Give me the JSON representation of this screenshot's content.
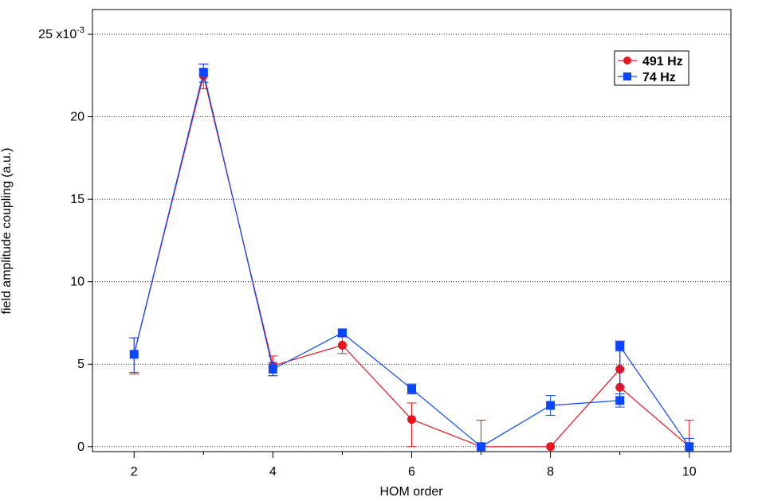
{
  "chart_data": {
    "type": "line",
    "title": "",
    "xlabel": "HOM order",
    "ylabel": "field amplitude coupling (a.u.)",
    "y_multiplier_label": "x10",
    "y_multiplier_exponent": "-3",
    "xlim": [
      1.4,
      10.6
    ],
    "ylim": [
      -0.3,
      26.5
    ],
    "x_ticks": [
      2,
      4,
      6,
      8,
      10
    ],
    "y_ticks": [
      0,
      5,
      10,
      15,
      20,
      25
    ],
    "y_tick_labels": [
      "0",
      "5",
      "10",
      "15",
      "20",
      "25"
    ],
    "x_minor_ticks": [
      3,
      5,
      7,
      9
    ],
    "grid": "horizontal dotted",
    "legend_position": "top-right",
    "series": [
      {
        "name": "491 Hz",
        "color": "#e8141e",
        "marker": "circle",
        "x": [
          2,
          3,
          4,
          5,
          6,
          7,
          8,
          9,
          9,
          10
        ],
        "y": [
          5.6,
          22.5,
          4.9,
          6.15,
          1.65,
          0.0,
          0.0,
          4.7,
          3.6,
          0.0
        ],
        "err_low": [
          1.2,
          0.8,
          0.6,
          0.5,
          1.65,
          0.0,
          0.0,
          0.0,
          0.0,
          0.0
        ],
        "err_high": [
          1.0,
          0.7,
          0.6,
          0.5,
          1.0,
          1.6,
          0.0,
          1.7,
          0.0,
          1.6
        ]
      },
      {
        "name": "74 Hz",
        "color": "#0a46ff",
        "marker": "square",
        "x": [
          2,
          3,
          4,
          5,
          6,
          7,
          8,
          9,
          9,
          10
        ],
        "y": [
          5.6,
          22.7,
          4.7,
          6.9,
          3.5,
          0.0,
          2.5,
          2.8,
          6.1,
          0.0
        ],
        "err_low": [
          1.1,
          0.6,
          0.4,
          0.2,
          0.3,
          0.0,
          0.6,
          0.4,
          0.3,
          0.0
        ],
        "err_high": [
          1.0,
          0.5,
          0.4,
          0.2,
          0.3,
          0.0,
          0.6,
          0.4,
          0.3,
          0.5
        ]
      }
    ]
  }
}
